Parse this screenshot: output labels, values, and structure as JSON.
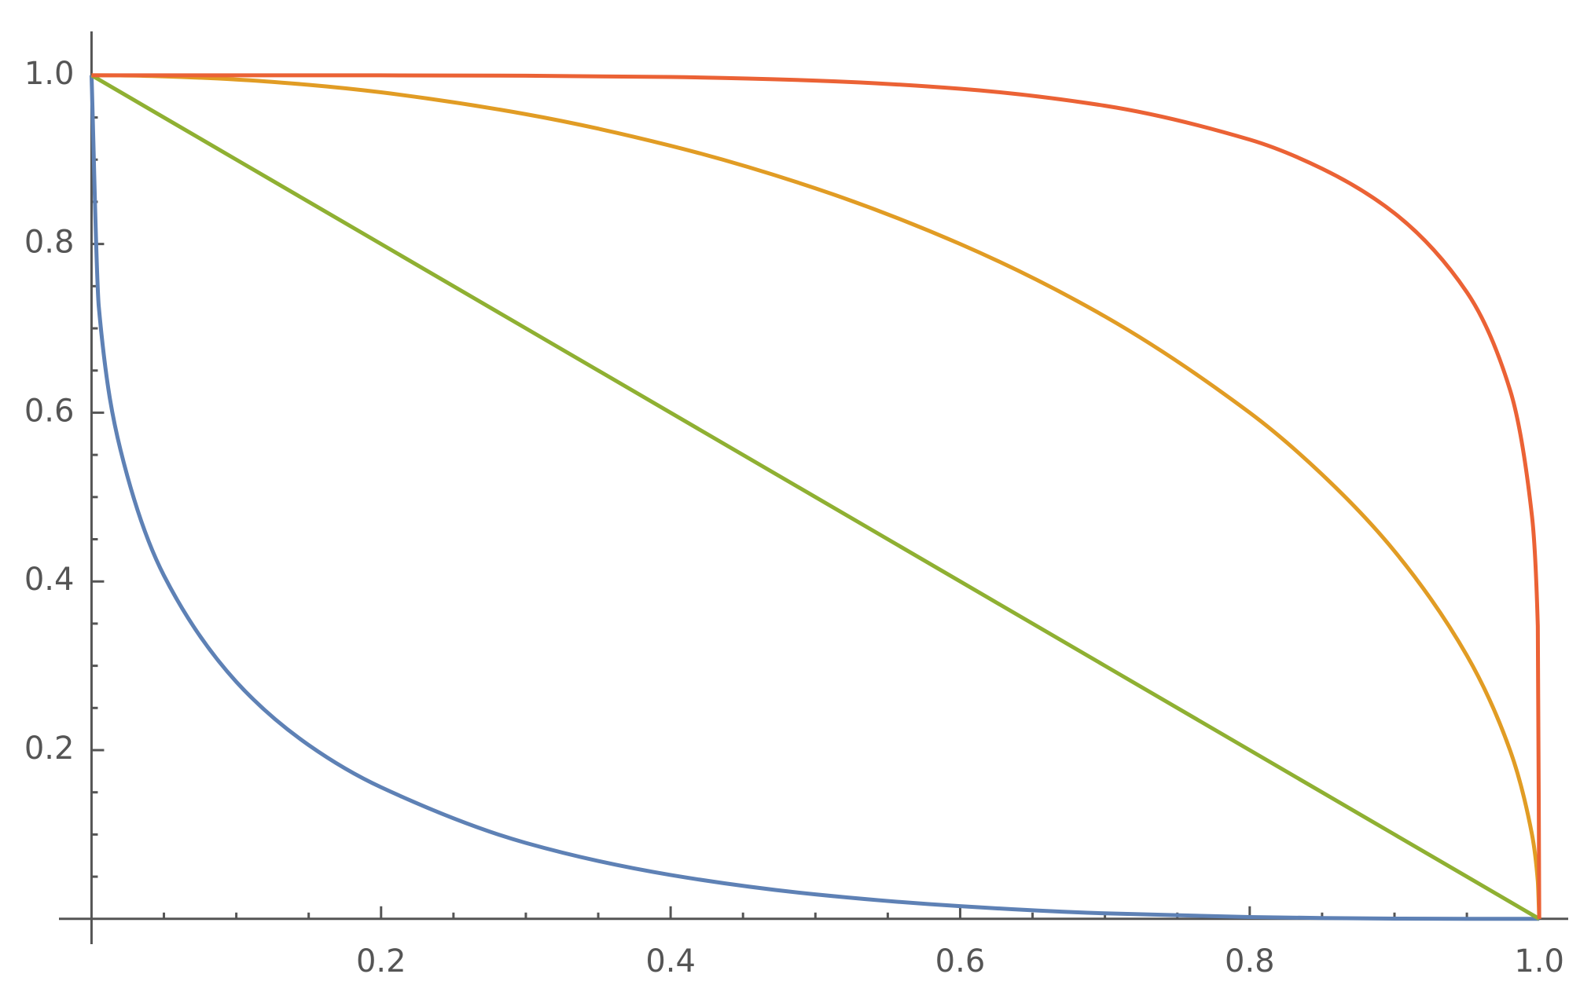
{
  "chart_data": {
    "type": "line",
    "x": [
      0,
      0.005,
      0.02,
      0.05,
      0.1,
      0.15,
      0.2,
      0.3,
      0.4,
      0.5,
      0.6,
      0.7,
      0.8,
      0.85,
      0.9,
      0.95,
      0.98,
      0.995,
      0.999,
      1
    ],
    "series": [
      {
        "color": "#5e81b5",
        "values": [
          1,
          0.726,
          0.556,
          0.407,
          0.281,
          0.206,
          0.156,
          0.09,
          0.052,
          0.029,
          0.015,
          0.0065,
          0.0021,
          0.001,
          0.0003,
          0,
          0,
          0,
          0,
          0
        ]
      },
      {
        "color": "#e19c24",
        "values": [
          1,
          1,
          0.9998,
          0.9987,
          0.995,
          0.9887,
          0.9798,
          0.9539,
          0.9165,
          0.866,
          0.8,
          0.7141,
          0.6,
          0.5268,
          0.4359,
          0.3122,
          0.199,
          0.0999,
          0.0447,
          0
        ]
      },
      {
        "color": "#8fb032",
        "values": [
          1,
          0.995,
          0.98,
          0.95,
          0.9,
          0.85,
          0.8,
          0.7,
          0.6,
          0.5,
          0.4,
          0.3,
          0.2,
          0.15,
          0.1,
          0.05,
          0.02,
          0.005,
          0.001,
          0
        ]
      },
      {
        "color": "#eb6235",
        "values": [
          1,
          1,
          1,
          1,
          1,
          1,
          0.99994,
          0.9995,
          0.99794,
          0.9937,
          0.984,
          0.9639,
          0.9237,
          0.8893,
          0.8365,
          0.7428,
          0.626,
          0.477,
          0.347,
          0
        ]
      }
    ],
    "xlim": [
      -0.0225,
      1.02
    ],
    "ylim": [
      -0.03,
      1.052
    ],
    "xticks": [
      0.2,
      0.4,
      0.6,
      0.8,
      {
        "value": 1,
        "label": "1.0"
      }
    ],
    "yticks": [
      0.2,
      0.4,
      0.6,
      0.8,
      {
        "value": 1,
        "label": "1.0"
      }
    ]
  }
}
